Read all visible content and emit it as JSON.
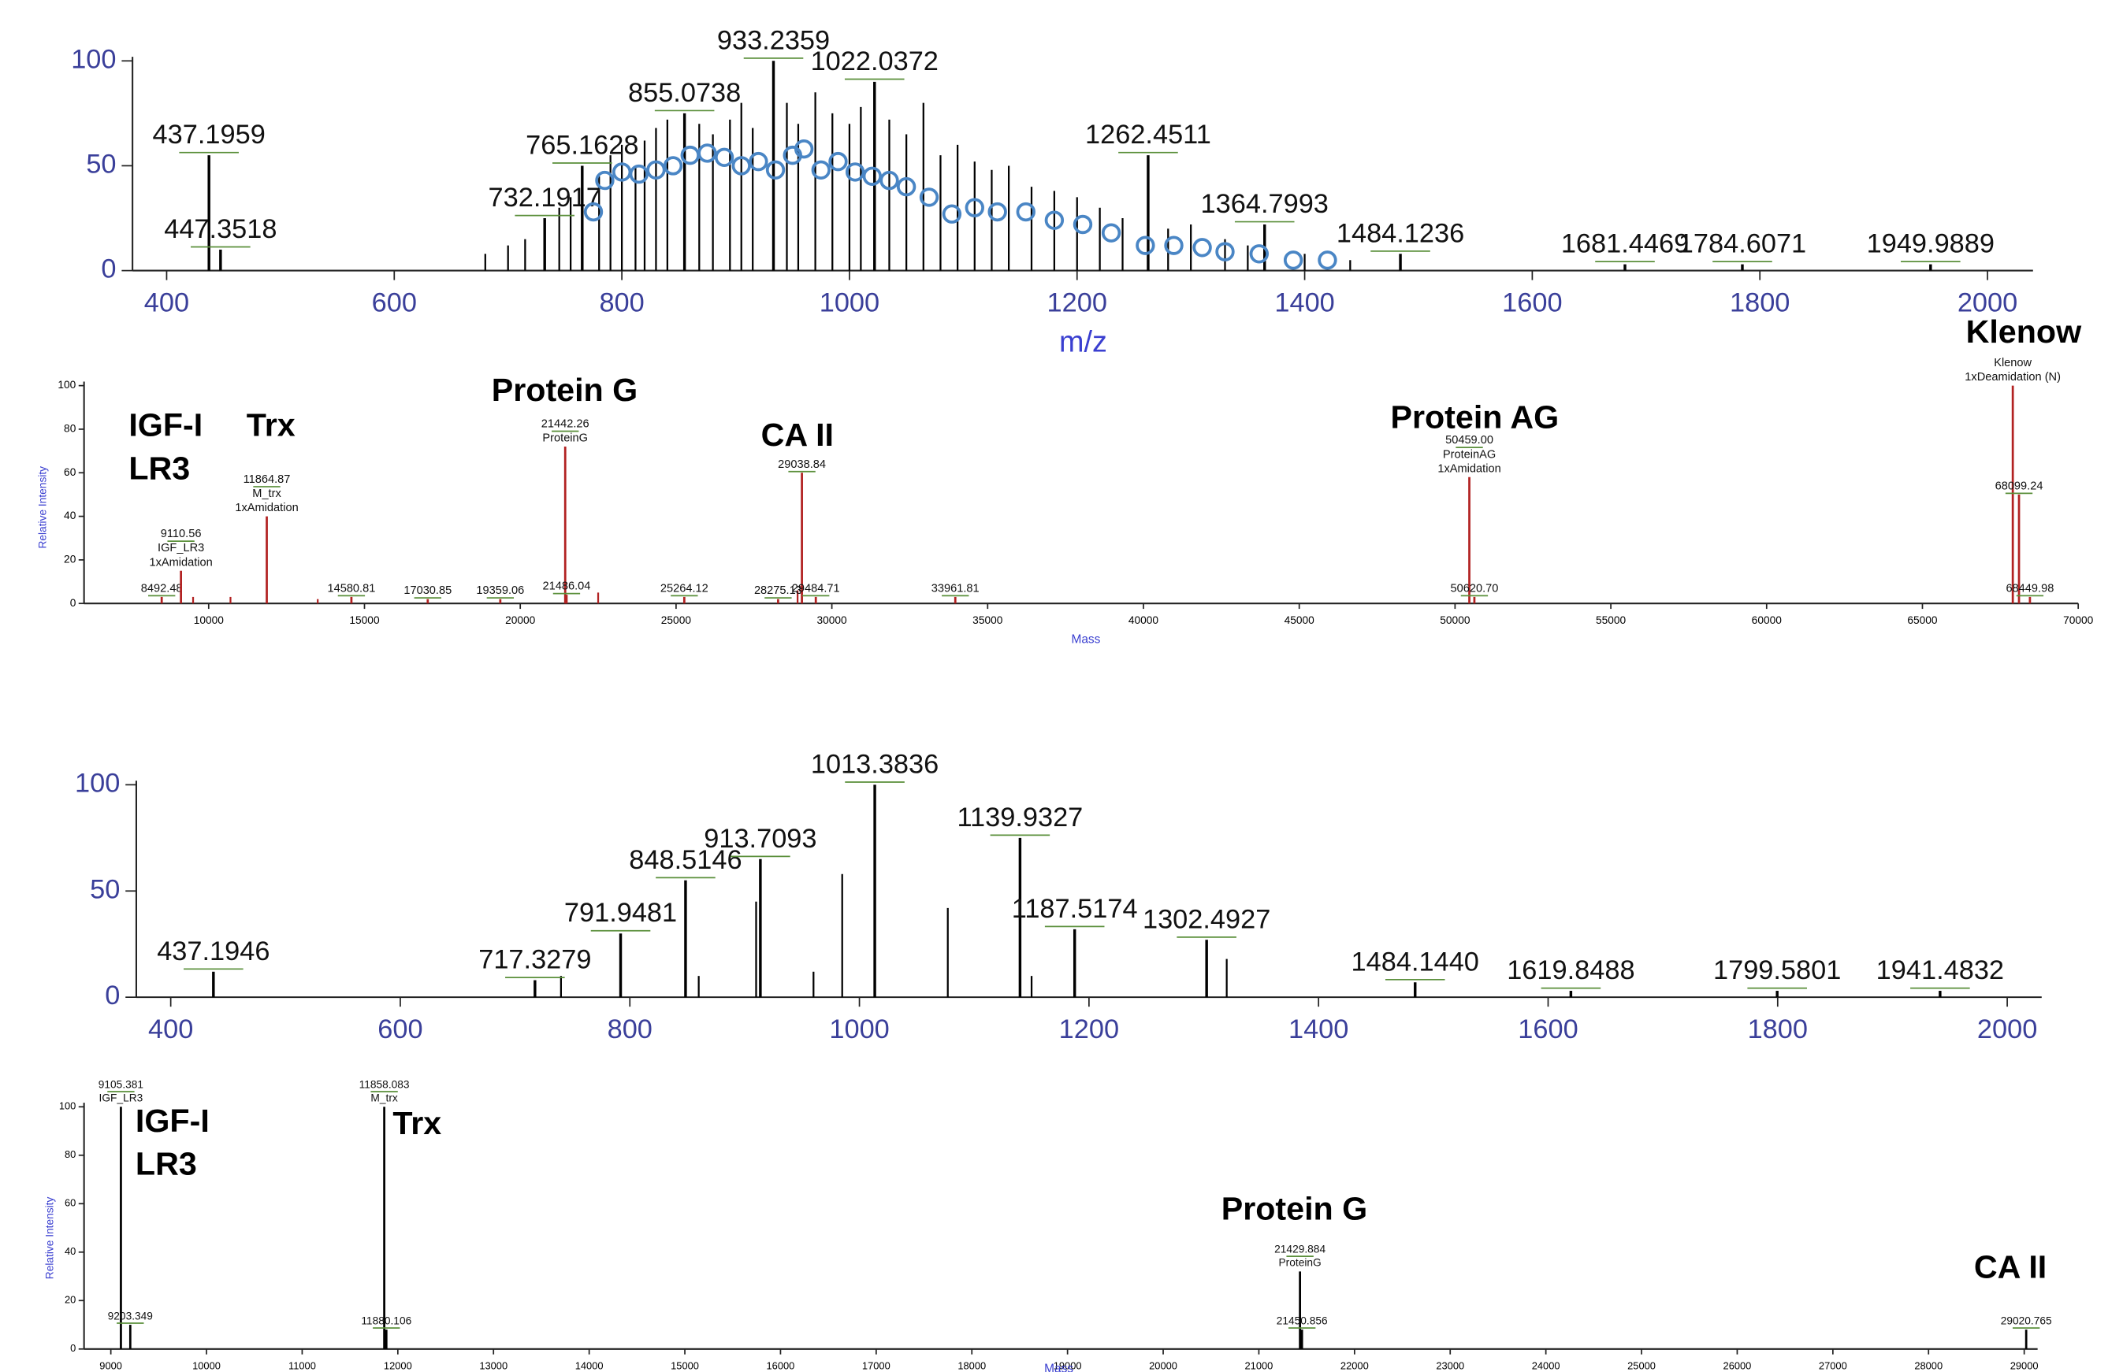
{
  "chart_data": [
    {
      "type": "stem",
      "xlabel": "m/z",
      "xlim": [
        370,
        2040
      ],
      "ylim": [
        0,
        100
      ],
      "xticks": [
        400,
        600,
        800,
        1000,
        1200,
        1400,
        1600,
        1800,
        2000
      ],
      "yticks": [
        0,
        50,
        100
      ],
      "color": "#000000",
      "x": [
        437.1959,
        447.3518,
        732.1917,
        765.1628,
        855.0738,
        933.2359,
        1022.0372,
        1262.4511,
        1364.7993,
        1484.1236,
        1681.4469,
        1784.6071,
        1949.9889
      ],
      "values": [
        55,
        10,
        25,
        50,
        75,
        100,
        90,
        55,
        22,
        8,
        3,
        3,
        3
      ],
      "peaks": {
        "x": [
          680,
          700,
          715,
          745,
          755,
          780,
          790,
          800,
          812,
          820,
          830,
          840,
          868,
          880,
          895,
          905,
          915,
          945,
          955,
          970,
          985,
          1000,
          1010,
          1035,
          1050,
          1065,
          1080,
          1095,
          1110,
          1125,
          1140,
          1160,
          1180,
          1200,
          1220,
          1240,
          1280,
          1300,
          1330,
          1350,
          1400,
          1440
        ],
        "values": [
          8,
          12,
          15,
          30,
          35,
          45,
          55,
          60,
          50,
          62,
          68,
          72,
          70,
          65,
          72,
          80,
          68,
          80,
          70,
          85,
          75,
          70,
          78,
          72,
          65,
          80,
          55,
          60,
          52,
          48,
          50,
          40,
          38,
          35,
          30,
          25,
          20,
          22,
          15,
          12,
          8,
          5
        ]
      },
      "envelope": {
        "color": "#4a86c5",
        "x": [
          775,
          785,
          800,
          815,
          830,
          845,
          860,
          875,
          890,
          905,
          920,
          935,
          950,
          960,
          975,
          990,
          1005,
          1020,
          1035,
          1050,
          1070,
          1090,
          1110,
          1130,
          1155,
          1180,
          1205,
          1230,
          1260,
          1285,
          1310,
          1330,
          1360,
          1390,
          1420
        ],
        "values": [
          28,
          43,
          47,
          46,
          48,
          50,
          55,
          56,
          54,
          50,
          52,
          48,
          55,
          58,
          48,
          52,
          47,
          45,
          43,
          40,
          35,
          27,
          30,
          28,
          28,
          24,
          22,
          18,
          12,
          12,
          11,
          9,
          8,
          5,
          5
        ]
      }
    },
    {
      "type": "stem",
      "xlabel": "Mass",
      "ylabel": "Relative Intensity",
      "xlim": [
        6000,
        70000
      ],
      "ylim": [
        0,
        100
      ],
      "xticks": [
        10000,
        15000,
        20000,
        25000,
        30000,
        35000,
        40000,
        45000,
        50000,
        55000,
        60000,
        65000,
        70000
      ],
      "yticks": [
        0,
        20,
        40,
        60,
        80,
        100
      ],
      "color": "#b22222",
      "x": [
        8492.48,
        9110.56,
        11864.87,
        14580.81,
        17030.85,
        19359.06,
        21442.26,
        21486.04,
        25264.12,
        28275.13,
        29038.84,
        29484.71,
        33961.81,
        50459,
        50620.7,
        67900,
        68099.24,
        68449.98
      ],
      "x_labels": [
        "8492.48",
        "9110.56",
        "11864.87",
        "14580.81",
        "17030.85",
        "19359.06",
        "21442.26",
        "21486.04",
        "25264.12",
        "28275.13",
        "29038.84",
        "29484.71",
        "33961.81",
        "50459.00",
        "50620.70",
        null,
        "68099.24",
        "68449.98"
      ],
      "names": [
        null,
        [
          "IGF_LR3",
          "1xAmidation"
        ],
        [
          "M_trx",
          "1xAmidation"
        ],
        null,
        null,
        null,
        [
          "ProteinG"
        ],
        null,
        null,
        null,
        null,
        null,
        null,
        [
          "ProteinAG",
          "1xAmidation"
        ],
        null,
        [
          "Klenow",
          "1xDeamidation (N)"
        ],
        null,
        null
      ],
      "values": [
        3,
        15,
        40,
        3,
        2,
        2,
        72,
        4,
        3,
        2,
        60,
        3,
        3,
        58,
        3,
        100,
        50,
        3
      ],
      "peaks": {
        "x": [
          9500,
          10700,
          13500,
          22500,
          28900
        ],
        "values": [
          3,
          3,
          2,
          5,
          6
        ]
      },
      "annotations": [
        [
          "IGF-I",
          "LR3"
        ],
        [
          "Trx"
        ],
        [
          "Protein G"
        ],
        [
          "CA II"
        ],
        [
          "Protein AG"
        ],
        [
          "Klenow"
        ]
      ]
    },
    {
      "type": "stem",
      "xlim": [
        370,
        2030
      ],
      "ylim": [
        0,
        100
      ],
      "xticks": [
        400,
        600,
        800,
        1000,
        1200,
        1400,
        1600,
        1800,
        2000
      ],
      "yticks": [
        0,
        50,
        100
      ],
      "color": "#000000",
      "x": [
        437.1946,
        717.3279,
        791.9481,
        848.5146,
        913.7093,
        1013.3836,
        1139.9327,
        1187.5174,
        1302.4927,
        1484.144,
        1619.8488,
        1799.5801,
        1941.4832
      ],
      "x_labels": [
        "437.1946",
        "717.3279",
        "791.9481",
        "848.5146",
        "913.7093",
        "1013.3836",
        "1139.9327",
        "1187.5174",
        "1302.4927",
        "1484.1440",
        "1619.8488",
        "1799.5801",
        "1941.4832"
      ],
      "values": [
        12,
        8,
        30,
        55,
        65,
        100,
        75,
        32,
        27,
        7,
        3,
        3,
        3
      ],
      "peaks": {
        "x": [
          740,
          860,
          910,
          960,
          985,
          1077,
          1150,
          1320
        ],
        "values": [
          10,
          10,
          45,
          12,
          58,
          42,
          10,
          18
        ]
      }
    },
    {
      "type": "stem",
      "xlabel": "Mass",
      "ylabel": "Relative Intensity",
      "xlim": [
        8720,
        29140
      ],
      "ylim": [
        0,
        100
      ],
      "xticks": [
        9000,
        10000,
        11000,
        12000,
        13000,
        14000,
        15000,
        16000,
        17000,
        18000,
        19000,
        20000,
        21000,
        22000,
        23000,
        24000,
        25000,
        26000,
        27000,
        28000,
        29000
      ],
      "yticks": [
        0,
        20,
        40,
        60,
        80,
        100
      ],
      "color": "#000000",
      "x": [
        9105.381,
        9203.349,
        11858.083,
        11880.106,
        21429.884,
        21450.856,
        29020.765
      ],
      "names": [
        [
          "IGF_LR3"
        ],
        null,
        [
          "M_trx"
        ],
        null,
        [
          "ProteinG"
        ],
        null,
        null
      ],
      "values": [
        100,
        10,
        100,
        8,
        32,
        8,
        8
      ],
      "annotations": [
        [
          "IGF-I",
          "LR3"
        ],
        [
          "Trx"
        ],
        [
          "Protein G"
        ],
        [
          "CA II"
        ]
      ]
    }
  ]
}
